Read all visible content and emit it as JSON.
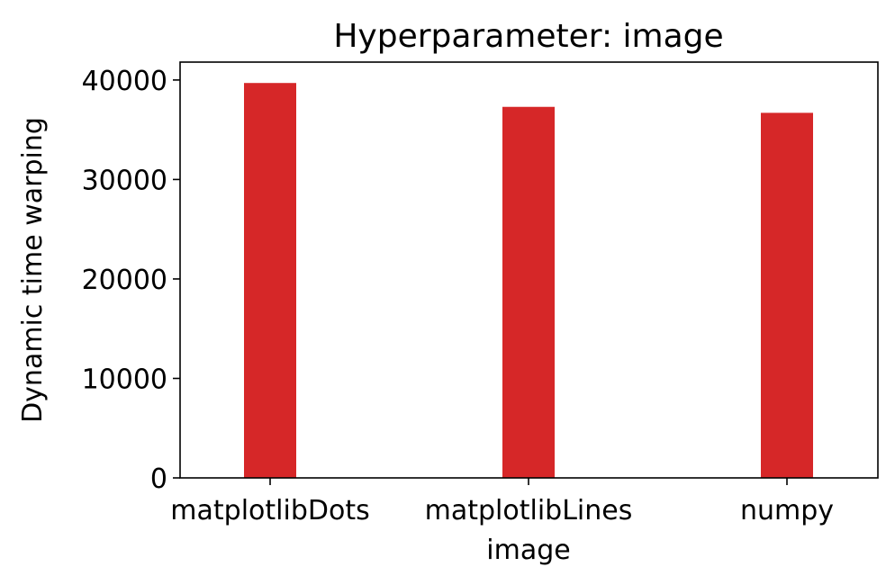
{
  "chart_data": {
    "type": "bar",
    "title": "Hyperparameter: image",
    "xlabel": "image",
    "ylabel": "Dynamic time warping",
    "categories": [
      "matplotlibDots",
      "matplotlibLines",
      "numpy"
    ],
    "series": [
      {
        "values": [
          39700,
          37300,
          36700
        ],
        "color": "#d62728"
      }
    ],
    "ylim": [
      0,
      41800
    ],
    "yticks": [
      0,
      10000,
      20000,
      30000,
      40000
    ],
    "ytick_labels": [
      "0",
      "10000",
      "20000",
      "30000",
      "40000"
    ],
    "grid": false,
    "legend": "none"
  }
}
